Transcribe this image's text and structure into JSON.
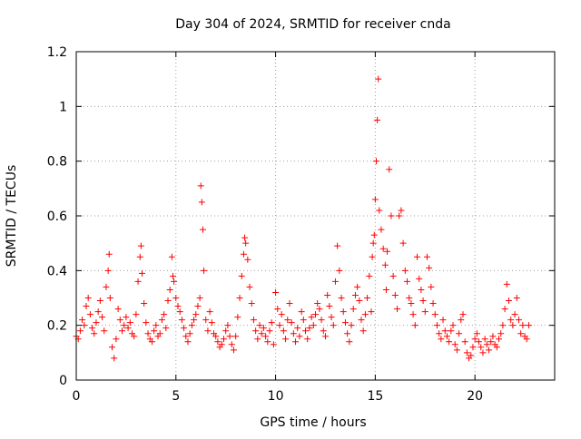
{
  "chart_data": {
    "type": "scatter",
    "title": "Day 304 of 2024, SRMTID for receiver cnda",
    "xlabel": "GPS time / hours",
    "ylabel": "SRMTID / TECUs",
    "xlim": [
      0,
      24
    ],
    "ylim": [
      0,
      1.2
    ],
    "x_ticks": [
      0,
      5,
      10,
      15,
      20
    ],
    "x_tick_labels": [
      "0",
      "5",
      "10",
      "15",
      "20"
    ],
    "y_ticks": [
      0,
      0.2,
      0.4,
      0.6,
      0.8,
      1.0,
      1.2
    ],
    "y_tick_labels": [
      "0",
      "0.2",
      "0.4",
      "0.6",
      "0.8",
      "1",
      "1.2"
    ],
    "grid": true,
    "marker": "plus",
    "colors": {
      "series": "#ff0000",
      "grid": "#a0a0a0",
      "axis": "#000000"
    },
    "series": [
      {
        "name": "SRMTID",
        "x": [
          0.0,
          0.1,
          0.2,
          0.3,
          0.4,
          0.5,
          0.6,
          0.7,
          0.8,
          0.9,
          1.0,
          1.1,
          1.2,
          1.3,
          1.4,
          1.5,
          1.6,
          1.65,
          1.7,
          1.8,
          1.9,
          2.0,
          2.1,
          2.2,
          2.3,
          2.4,
          2.5,
          2.6,
          2.7,
          2.8,
          2.9,
          3.0,
          3.1,
          3.2,
          3.25,
          3.3,
          3.4,
          3.5,
          3.6,
          3.7,
          3.8,
          3.9,
          4.0,
          4.1,
          4.2,
          4.3,
          4.4,
          4.5,
          4.6,
          4.7,
          4.8,
          4.85,
          4.9,
          5.0,
          5.1,
          5.2,
          5.3,
          5.4,
          5.5,
          5.6,
          5.7,
          5.8,
          5.9,
          6.0,
          6.1,
          6.2,
          6.25,
          6.3,
          6.35,
          6.4,
          6.5,
          6.6,
          6.7,
          6.8,
          6.9,
          7.0,
          7.1,
          7.2,
          7.3,
          7.4,
          7.5,
          7.6,
          7.7,
          7.8,
          7.9,
          8.0,
          8.1,
          8.2,
          8.3,
          8.4,
          8.45,
          8.5,
          8.6,
          8.7,
          8.8,
          8.9,
          9.0,
          9.1,
          9.2,
          9.3,
          9.4,
          9.5,
          9.6,
          9.7,
          9.8,
          9.9,
          10.0,
          10.1,
          10.2,
          10.3,
          10.4,
          10.5,
          10.6,
          10.7,
          10.8,
          10.9,
          11.0,
          11.1,
          11.2,
          11.3,
          11.4,
          11.5,
          11.6,
          11.7,
          11.8,
          11.9,
          12.0,
          12.1,
          12.2,
          12.3,
          12.4,
          12.5,
          12.6,
          12.7,
          12.8,
          12.9,
          13.0,
          13.1,
          13.2,
          13.3,
          13.4,
          13.5,
          13.6,
          13.7,
          13.8,
          13.9,
          14.0,
          14.1,
          14.2,
          14.3,
          14.4,
          14.5,
          14.6,
          14.7,
          14.8,
          14.85,
          14.9,
          14.95,
          15.0,
          15.05,
          15.1,
          15.15,
          15.2,
          15.3,
          15.4,
          15.5,
          15.55,
          15.6,
          15.7,
          15.8,
          15.9,
          16.0,
          16.1,
          16.2,
          16.3,
          16.4,
          16.5,
          16.6,
          16.7,
          16.8,
          16.9,
          17.0,
          17.1,
          17.2,
          17.3,
          17.4,
          17.5,
          17.6,
          17.7,
          17.8,
          17.9,
          18.0,
          18.1,
          18.2,
          18.3,
          18.4,
          18.5,
          18.6,
          18.7,
          18.8,
          18.9,
          19.0,
          19.1,
          19.2,
          19.3,
          19.4,
          19.5,
          19.6,
          19.7,
          19.8,
          19.9,
          20.0,
          20.1,
          20.2,
          20.3,
          20.4,
          20.5,
          20.6,
          20.7,
          20.8,
          20.9,
          21.0,
          21.1,
          21.2,
          21.3,
          21.4,
          21.5,
          21.6,
          21.7,
          21.8,
          21.9,
          22.0,
          22.1,
          22.2,
          22.3,
          22.4,
          22.5,
          22.6,
          22.7
        ],
        "y": [
          0.16,
          0.15,
          0.18,
          0.22,
          0.2,
          0.27,
          0.3,
          0.24,
          0.19,
          0.17,
          0.21,
          0.25,
          0.29,
          0.23,
          0.18,
          0.34,
          0.4,
          0.46,
          0.3,
          0.12,
          0.08,
          0.15,
          0.26,
          0.22,
          0.18,
          0.2,
          0.23,
          0.19,
          0.21,
          0.17,
          0.16,
          0.24,
          0.36,
          0.45,
          0.49,
          0.39,
          0.28,
          0.21,
          0.17,
          0.15,
          0.14,
          0.18,
          0.2,
          0.16,
          0.17,
          0.22,
          0.24,
          0.19,
          0.29,
          0.33,
          0.45,
          0.38,
          0.36,
          0.3,
          0.27,
          0.25,
          0.22,
          0.19,
          0.16,
          0.14,
          0.17,
          0.2,
          0.22,
          0.24,
          0.27,
          0.3,
          0.71,
          0.65,
          0.55,
          0.4,
          0.22,
          0.18,
          0.25,
          0.21,
          0.17,
          0.16,
          0.14,
          0.12,
          0.13,
          0.15,
          0.18,
          0.2,
          0.16,
          0.13,
          0.11,
          0.16,
          0.23,
          0.3,
          0.38,
          0.46,
          0.52,
          0.5,
          0.44,
          0.34,
          0.28,
          0.22,
          0.18,
          0.15,
          0.2,
          0.17,
          0.19,
          0.16,
          0.14,
          0.18,
          0.21,
          0.13,
          0.32,
          0.26,
          0.2,
          0.24,
          0.18,
          0.15,
          0.22,
          0.28,
          0.21,
          0.17,
          0.14,
          0.19,
          0.16,
          0.25,
          0.22,
          0.18,
          0.15,
          0.19,
          0.23,
          0.2,
          0.24,
          0.28,
          0.26,
          0.22,
          0.18,
          0.16,
          0.31,
          0.27,
          0.23,
          0.2,
          0.36,
          0.49,
          0.4,
          0.3,
          0.25,
          0.21,
          0.17,
          0.14,
          0.2,
          0.26,
          0.31,
          0.34,
          0.29,
          0.22,
          0.18,
          0.24,
          0.3,
          0.38,
          0.25,
          0.45,
          0.5,
          0.53,
          0.66,
          0.8,
          0.95,
          1.1,
          0.62,
          0.55,
          0.48,
          0.42,
          0.33,
          0.47,
          0.77,
          0.6,
          0.38,
          0.31,
          0.26,
          0.6,
          0.62,
          0.5,
          0.4,
          0.36,
          0.3,
          0.28,
          0.24,
          0.2,
          0.45,
          0.37,
          0.33,
          0.29,
          0.25,
          0.45,
          0.41,
          0.34,
          0.28,
          0.24,
          0.2,
          0.17,
          0.15,
          0.22,
          0.18,
          0.16,
          0.14,
          0.18,
          0.2,
          0.13,
          0.11,
          0.17,
          0.22,
          0.24,
          0.14,
          0.1,
          0.08,
          0.09,
          0.12,
          0.15,
          0.17,
          0.14,
          0.12,
          0.1,
          0.15,
          0.13,
          0.11,
          0.14,
          0.16,
          0.13,
          0.12,
          0.15,
          0.17,
          0.2,
          0.26,
          0.35,
          0.29,
          0.22,
          0.2,
          0.24,
          0.3,
          0.22,
          0.17,
          0.2,
          0.16,
          0.15,
          0.2
        ]
      }
    ]
  }
}
